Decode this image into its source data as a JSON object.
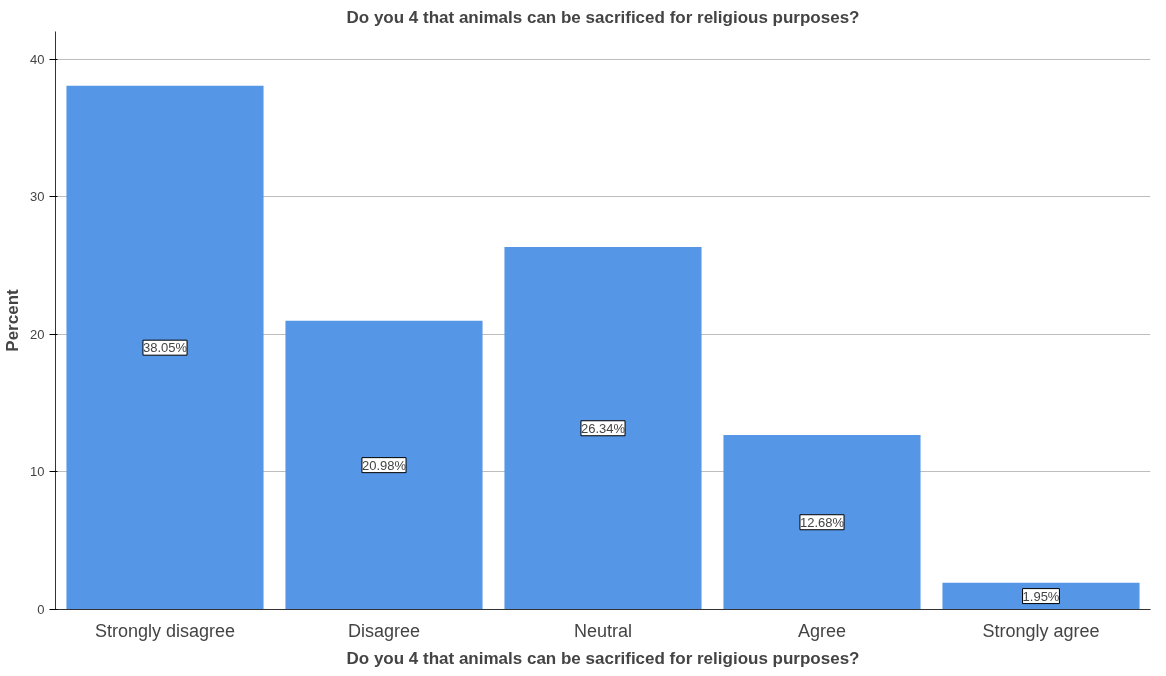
{
  "chart_data": {
    "type": "bar",
    "title": "Do you 4 that animals can be sacrificed for religious purposes?",
    "xlabel": "Do you 4 that animals can be sacrificed for religious purposes?",
    "ylabel": "Percent",
    "categories": [
      "Strongly disagree",
      "Disagree",
      "Neutral",
      "Agree",
      "Strongly agree"
    ],
    "values": [
      38.05,
      20.98,
      26.34,
      12.68,
      1.95
    ],
    "value_labels": [
      "38.05%",
      "20.98%",
      "26.34%",
      "12.68%",
      "1.95%"
    ],
    "color": "#5596e6",
    "ylim": [
      0,
      42
    ],
    "yticks": [
      0,
      10,
      20,
      30,
      40
    ],
    "grid": "y"
  }
}
